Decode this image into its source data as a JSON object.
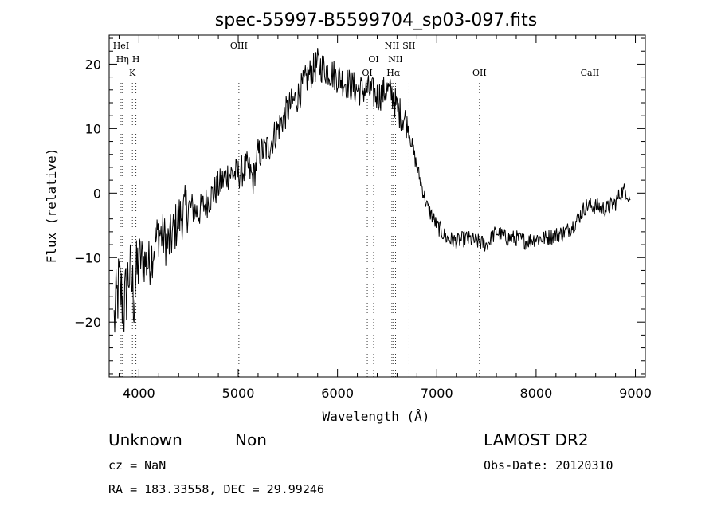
{
  "chart_data": {
    "type": "line",
    "title": "spec-55997-B5599704_sp03-097.fits",
    "xlabel": "Wavelength (Å)",
    "ylabel": "Flux (relative)",
    "xlim": [
      3700,
      9100
    ],
    "ylim": [
      -28.5,
      24.5
    ],
    "xticks": [
      4000,
      5000,
      6000,
      7000,
      8000,
      9000
    ],
    "yticks": [
      -20,
      -10,
      0,
      10,
      20
    ],
    "grid": false,
    "series": [
      {
        "x": [
          3750,
          3800,
          3850,
          3900,
          3950,
          4000,
          4100,
          4200,
          4300,
          4400,
          4500,
          4600,
          4700,
          4800,
          4900,
          5000,
          5100,
          5150,
          5200,
          5300,
          5400,
          5500,
          5600,
          5700,
          5800,
          5900,
          6000,
          6100,
          6200,
          6300,
          6400,
          6500,
          6560,
          6600,
          6700,
          6800,
          6900,
          7000,
          7100,
          7200,
          7300,
          7400,
          7500,
          7600,
          7700,
          7800,
          7900,
          8000,
          8100,
          8200,
          8300,
          8400,
          8500,
          8600,
          8700,
          8800,
          8850,
          8900,
          8950
        ],
        "y": [
          -20,
          -14,
          -18,
          -12,
          -16,
          -10,
          -11,
          -6,
          -8,
          -4,
          -2,
          -3,
          -1,
          1,
          3,
          3,
          4,
          2,
          6,
          7,
          10,
          13,
          15,
          18,
          20,
          19,
          18,
          17,
          16,
          16,
          15,
          16,
          15,
          13,
          11,
          4,
          -2,
          -5,
          -7,
          -7.5,
          -7,
          -7.5,
          -8,
          -6,
          -7,
          -7,
          -7.5,
          -7,
          -7,
          -6.5,
          -6,
          -4.5,
          -2,
          -2,
          -2.5,
          -1.5,
          0,
          0.5,
          -1
        ]
      }
    ],
    "line_markers": [
      {
        "label": "HeI",
        "x": 3820,
        "row": 1
      },
      {
        "label": "Hη",
        "x": 3835,
        "row": 2
      },
      {
        "label": "H",
        "x": 3970,
        "row": 2
      },
      {
        "label": "K",
        "x": 3934,
        "row": 3
      },
      {
        "label": "OIII",
        "x": 5007,
        "row": 1
      },
      {
        "label": "OI",
        "x": 6364,
        "row": 2
      },
      {
        "label": "OI",
        "x": 6300,
        "row": 3
      },
      {
        "label": "NII",
        "x": 6548,
        "row": 1
      },
      {
        "label": "SII",
        "x": 6720,
        "row": 1
      },
      {
        "label": "NII",
        "x": 6584,
        "row": 2
      },
      {
        "label": "Hα",
        "x": 6563,
        "row": 3
      },
      {
        "label": "OII",
        "x": 7430,
        "row": 3
      },
      {
        "label": "CaII",
        "x": 8542,
        "row": 3
      }
    ]
  },
  "info": {
    "class": "Unknown",
    "subclass": "Non",
    "survey": "LAMOST DR2",
    "cz": "cz = NaN",
    "obs_date": "Obs-Date: 20120310",
    "coords": "RA = 183.33558, DEC =  29.99246"
  }
}
